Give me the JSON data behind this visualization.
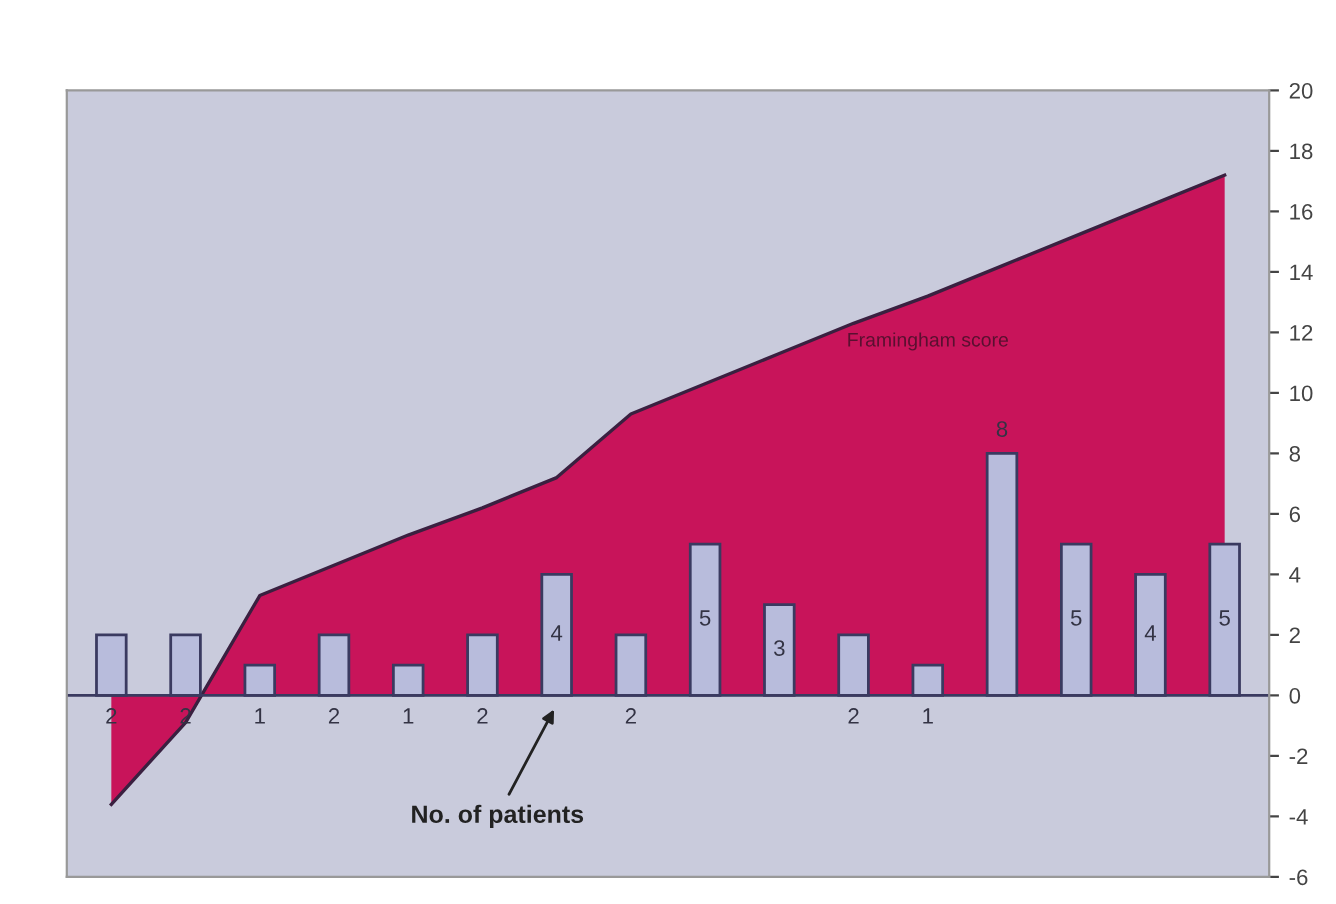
{
  "chart_data": {
    "type": "bar",
    "categories": [
      null,
      null,
      null,
      null,
      null,
      null,
      null,
      null,
      null,
      null,
      null,
      null,
      null,
      null,
      null,
      null
    ],
    "series": [
      {
        "name": "No. of patients",
        "color": "#b8bcdc",
        "values": [
          2,
          2,
          1,
          2,
          1,
          2,
          4,
          2,
          5,
          3,
          2,
          1,
          8,
          5,
          4,
          5
        ],
        "value_labels": [
          "2",
          "2",
          "1",
          "2",
          "1",
          "2",
          "4",
          "2",
          "5",
          "3",
          "2",
          "1",
          "8",
          "5",
          "4",
          "5"
        ]
      },
      {
        "name": "Framingham score",
        "type": "area",
        "color": "#c8145a",
        "values": [
          -3.6,
          -0.9,
          3.3,
          4.3,
          5.3,
          6.2,
          7.2,
          9.3,
          10.3,
          11.3,
          12.3,
          13.2,
          14.2,
          15.2,
          16.2,
          17.2
        ]
      }
    ],
    "ref_lines": [
      {
        "axis": "y",
        "value": 0
      }
    ],
    "ylim": [
      -6,
      20
    ],
    "yticks": [
      -6,
      -4,
      -2,
      0,
      2,
      4,
      6,
      8,
      10,
      12,
      14,
      16,
      18,
      20
    ],
    "legend": false,
    "grid": false
  }
}
